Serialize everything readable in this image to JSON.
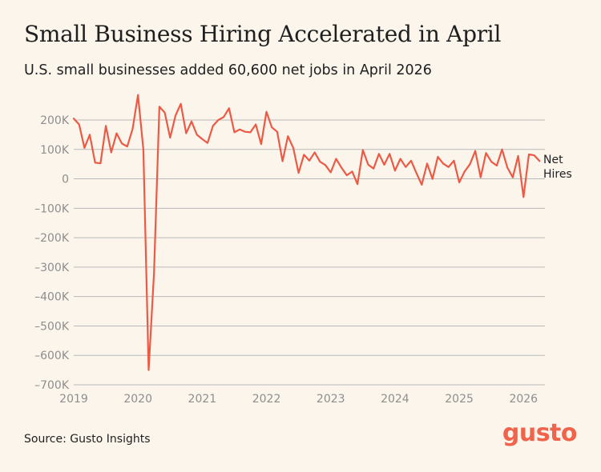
{
  "title": "Small Business Hiring Accelerated in April",
  "subtitle": "U.S. small businesses added 60,600 net jobs in April 2026",
  "source": "Source: Gusto Insights",
  "logo_text": "gusto",
  "colors": {
    "background": "#fbf5ec",
    "line": "#ec5a45",
    "grid": "#b9b9b9",
    "logo": "#f0644b"
  },
  "chart_data": {
    "type": "line",
    "title": "Small Business Hiring Accelerated in April",
    "subtitle": "U.S. small businesses added 60,600 net jobs in April 2026",
    "xlabel": "",
    "ylabel": "",
    "ylim": [
      -700000,
      200000
    ],
    "xlim": [
      "2019-01",
      "2026-05"
    ],
    "grid": "horizontal",
    "y_ticks": [
      200000,
      100000,
      0,
      -100000,
      -200000,
      -300000,
      -400000,
      -500000,
      -600000,
      -700000
    ],
    "y_tick_labels": [
      "200K",
      "100K",
      "0",
      "–100K",
      "–200K",
      "–300K",
      "–400K",
      "–500K",
      "–600K",
      "–700K"
    ],
    "x_ticks": [
      "2019-01",
      "2020-01",
      "2021-01",
      "2022-01",
      "2023-01",
      "2024-01",
      "2025-01",
      "2026-01"
    ],
    "x_tick_labels": [
      "2019",
      "2020",
      "2021",
      "2022",
      "2023",
      "2024",
      "2025",
      "2026"
    ],
    "series_label": [
      "Net",
      "Hires"
    ],
    "series": [
      {
        "name": "Net Hires",
        "color": "#ec5a45",
        "x": [
          "2019-01",
          "2019-02",
          "2019-03",
          "2019-04",
          "2019-05",
          "2019-06",
          "2019-07",
          "2019-08",
          "2019-09",
          "2019-10",
          "2019-11",
          "2019-12",
          "2020-01",
          "2020-02",
          "2020-03",
          "2020-04",
          "2020-05",
          "2020-06",
          "2020-07",
          "2020-08",
          "2020-09",
          "2020-10",
          "2020-11",
          "2020-12",
          "2021-01",
          "2021-02",
          "2021-03",
          "2021-04",
          "2021-05",
          "2021-06",
          "2021-07",
          "2021-08",
          "2021-09",
          "2021-10",
          "2021-11",
          "2021-12",
          "2022-01",
          "2022-02",
          "2022-03",
          "2022-04",
          "2022-05",
          "2022-06",
          "2022-07",
          "2022-08",
          "2022-09",
          "2022-10",
          "2022-11",
          "2022-12",
          "2023-01",
          "2023-02",
          "2023-03",
          "2023-04",
          "2023-05",
          "2023-06",
          "2023-07",
          "2023-08",
          "2023-09",
          "2023-10",
          "2023-11",
          "2023-12",
          "2024-01",
          "2024-02",
          "2024-03",
          "2024-04",
          "2024-05",
          "2024-06",
          "2024-07",
          "2024-08",
          "2024-09",
          "2024-10",
          "2024-11",
          "2024-12",
          "2025-01",
          "2025-02",
          "2025-03",
          "2025-04",
          "2025-05",
          "2025-06",
          "2025-07",
          "2025-08",
          "2025-09",
          "2025-10",
          "2025-11",
          "2025-12",
          "2026-01",
          "2026-02",
          "2026-03",
          "2026-04"
        ],
        "values": [
          205000,
          185000,
          105000,
          150000,
          55000,
          53000,
          180000,
          90000,
          155000,
          120000,
          110000,
          170000,
          285000,
          100000,
          -650000,
          -320000,
          245000,
          225000,
          140000,
          215000,
          255000,
          155000,
          195000,
          150000,
          135000,
          122000,
          180000,
          200000,
          210000,
          240000,
          158000,
          168000,
          160000,
          158000,
          185000,
          118000,
          228000,
          175000,
          160000,
          60000,
          145000,
          105000,
          20000,
          82000,
          62000,
          90000,
          58000,
          47000,
          22000,
          68000,
          38000,
          12000,
          25000,
          -18000,
          98000,
          48000,
          35000,
          85000,
          48000,
          85000,
          28000,
          68000,
          40000,
          62000,
          20000,
          -20000,
          52000,
          0,
          75000,
          52000,
          40000,
          62000,
          -12000,
          25000,
          50000,
          95000,
          5000,
          88000,
          58000,
          45000,
          100000,
          38000,
          5000,
          78000,
          -62000,
          83000,
          80000,
          60600
        ]
      }
    ]
  }
}
